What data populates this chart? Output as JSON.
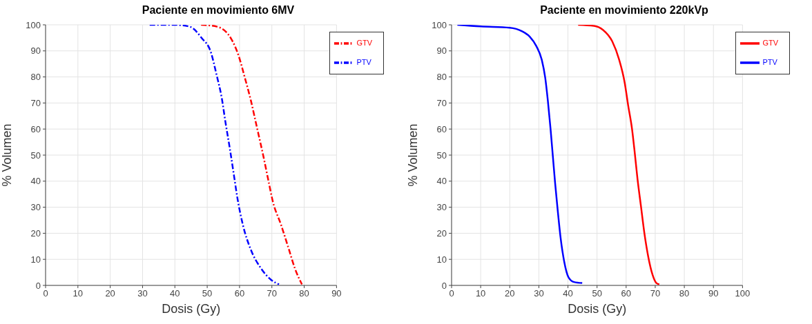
{
  "chart_data": [
    {
      "type": "line",
      "title": "Paciente en movimiento 6MV",
      "xlabel": "Dosis (Gy)",
      "ylabel": "% Volumen",
      "xlim": [
        0,
        90
      ],
      "xticks": [
        0,
        10,
        20,
        30,
        40,
        50,
        60,
        70,
        80,
        90
      ],
      "ylim": [
        0,
        100
      ],
      "yticks": [
        0,
        10,
        20,
        30,
        40,
        50,
        60,
        70,
        80,
        90,
        100
      ],
      "grid": true,
      "legend": "top right",
      "line_style": "dashed",
      "series": [
        {
          "name": "GTV",
          "color": "#ff0000",
          "x": [
            48.1,
            53,
            57.3,
            59.8,
            61.6,
            63.5,
            65.4,
            67.3,
            68.8,
            70.3,
            72.8,
            75.3,
            77.1,
            79.3
          ],
          "values": [
            100,
            99.3,
            94.9,
            87.8,
            79.9,
            71,
            60.5,
            50,
            41,
            32.2,
            23.4,
            13.7,
            6.6,
            0.4
          ]
        },
        {
          "name": "PTV",
          "color": "#0000ff",
          "x": [
            32.2,
            40,
            44.6,
            48.3,
            51.1,
            52.9,
            54.5,
            55.7,
            57,
            58.2,
            59.4,
            61,
            63.5,
            66.6,
            69.7,
            72.2
          ],
          "values": [
            100,
            100,
            99.3,
            94.9,
            89.6,
            80.8,
            71.9,
            62.2,
            52.5,
            42.8,
            33.1,
            23.4,
            13.7,
            6.6,
            2.2,
            0.4
          ]
        }
      ]
    },
    {
      "type": "line",
      "title": "Paciente en movimiento 220kVp",
      "xlabel": "Dosis (Gy)",
      "ylabel": "% Volumen",
      "xlim": [
        0,
        100
      ],
      "xticks": [
        0,
        10,
        20,
        30,
        40,
        50,
        60,
        70,
        80,
        90,
        100
      ],
      "ylim": [
        0,
        100
      ],
      "yticks": [
        0,
        10,
        20,
        30,
        40,
        50,
        60,
        70,
        80,
        90,
        100
      ],
      "grid": true,
      "legend": "top right",
      "line_style": "solid",
      "series": [
        {
          "name": "GTV",
          "color": "#ff0000",
          "x": [
            43.5,
            48.9,
            52,
            55.2,
            57.6,
            59.5,
            60.7,
            62,
            62.9,
            63.9,
            65.1,
            66.3,
            67.6,
            69.1,
            70.4,
            71.4
          ],
          "values": [
            100,
            99.6,
            98.1,
            93.7,
            86.6,
            77.8,
            69,
            60.2,
            51.5,
            40.9,
            30.3,
            19.8,
            11,
            4,
            0.9,
            0.4
          ]
        },
        {
          "name": "PTV",
          "color": "#0000ff",
          "x": [
            2,
            10,
            20,
            24.1,
            26.9,
            29.1,
            31,
            32.2,
            33.1,
            34,
            34.8,
            35.6,
            36.5,
            37.5,
            38.7,
            40.2,
            42.1,
            44.9
          ],
          "values": [
            100,
            99.4,
            98.9,
            97.6,
            95.4,
            91.9,
            86.6,
            79.6,
            70.8,
            60.3,
            49.7,
            39.1,
            28.6,
            18,
            9.2,
            3.1,
            1.3,
            0.9
          ]
        }
      ]
    }
  ]
}
